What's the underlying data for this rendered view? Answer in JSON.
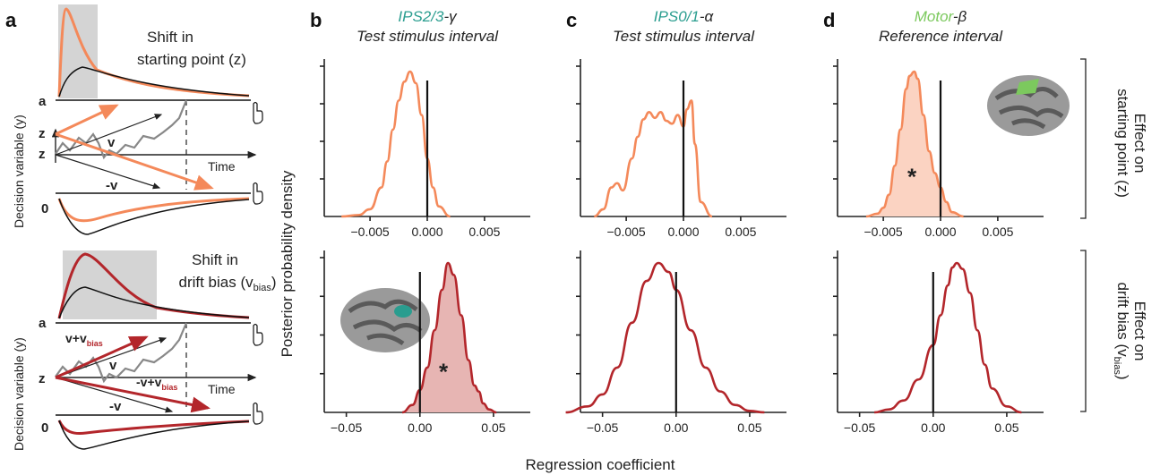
{
  "colors": {
    "orange": "#f4895a",
    "orange_fill": "#fbd3c2",
    "red": "#b3262b",
    "red_fill": "#e7b5b3",
    "gray": "#7a7a7a",
    "teal": "#2a9d8f",
    "green": "#7cc95e"
  },
  "panel_a": {
    "letter": "a",
    "top": {
      "label_line1": "Shift in",
      "label_line2": "starting point (z)",
      "y_axis_label": "Decision variable (y)",
      "label_a": "a",
      "label_z_shift": "z",
      "label_z": "z",
      "label_0": "0",
      "drift_v": "v",
      "drift_minus_v": "-v",
      "time_label": "Time"
    },
    "bottom": {
      "label_line1": "Shift in",
      "label_line2_prefix": "drift bias (v",
      "label_line2_sub": "bias",
      "label_line2_suffix": ")",
      "y_axis_label": "Decision variable (y)",
      "label_a": "a",
      "label_z": "z",
      "label_0": "0",
      "drift_v_plus_prefix": "v+v",
      "drift_v_plus_sub": "bias",
      "drift_v": "v",
      "drift_minus_v_plus_prefix": "-v+v",
      "drift_minus_v_plus_sub": "bias",
      "drift_minus_v": "-v",
      "time_label": "Time"
    }
  },
  "ylabel": "Posterior probability density",
  "xlabel": "Regression coefficient",
  "right_labels": {
    "top": {
      "line1": "Effect on",
      "line2": "starting point (z)"
    },
    "bottom": {
      "line1": "Effect on",
      "line2_prefix": "drift bias (v",
      "line2_sub": "bias",
      "line2_suffix": ")"
    }
  },
  "chart_data": [
    {
      "id": "b-top",
      "type": "area",
      "panel_letter": "b",
      "title_colored": "IPS2/3",
      "title_rest": "-γ",
      "subtitle": "Test stimulus interval",
      "xlim": [
        -0.009,
        0.009
      ],
      "xticks": [
        -0.005,
        0.0,
        0.005
      ],
      "xtick_labels": [
        "−0.005",
        "0.000",
        "0.005"
      ],
      "x": [
        -0.0075,
        -0.006,
        -0.005,
        -0.004,
        -0.0035,
        -0.003,
        -0.0025,
        -0.002,
        -0.0015,
        -0.001,
        -0.0005,
        0.0,
        0.0005,
        0.001,
        0.002
      ],
      "y": [
        0.0,
        0.01,
        0.05,
        0.2,
        0.38,
        0.6,
        0.8,
        0.93,
        1.0,
        0.92,
        0.7,
        0.4,
        0.2,
        0.07,
        0.0
      ],
      "filled": false,
      "significant": false
    },
    {
      "id": "c-top",
      "type": "area",
      "panel_letter": "c",
      "title_colored": "IPS0/1",
      "title_rest": "-α",
      "subtitle": "Test stimulus interval",
      "xlim": [
        -0.009,
        0.009
      ],
      "xticks": [
        -0.005,
        0.0,
        0.005
      ],
      "xtick_labels": [
        "−0.005",
        "0.000",
        "0.005"
      ],
      "x": [
        -0.0078,
        -0.007,
        -0.0063,
        -0.0058,
        -0.0053,
        -0.0045,
        -0.004,
        -0.0035,
        -0.003,
        -0.0025,
        -0.002,
        -0.0015,
        -0.001,
        -0.0005,
        0.0,
        0.0003,
        0.0007,
        0.001,
        0.0015,
        0.0025
      ],
      "y": [
        0.0,
        0.05,
        0.2,
        0.23,
        0.18,
        0.4,
        0.55,
        0.67,
        0.72,
        0.68,
        0.72,
        0.66,
        0.64,
        0.7,
        0.62,
        0.74,
        0.8,
        0.5,
        0.1,
        0.0
      ],
      "filled": false,
      "significant": false
    },
    {
      "id": "d-top",
      "type": "area",
      "panel_letter": "d",
      "title_colored": "Motor",
      "title_rest": "-β",
      "subtitle": "Reference interval",
      "xlim": [
        -0.009,
        0.009
      ],
      "xticks": [
        -0.005,
        0.0,
        0.005
      ],
      "xtick_labels": [
        "−0.005",
        "0.000",
        "0.005"
      ],
      "x": [
        -0.0065,
        -0.0055,
        -0.005,
        -0.0045,
        -0.004,
        -0.0035,
        -0.003,
        -0.0027,
        -0.0023,
        -0.002,
        -0.0015,
        -0.001,
        -0.0005,
        0.0,
        0.0005,
        0.001,
        0.002
      ],
      "y": [
        0.0,
        0.02,
        0.06,
        0.15,
        0.35,
        0.6,
        0.88,
        0.97,
        1.0,
        0.95,
        0.7,
        0.45,
        0.3,
        0.2,
        0.1,
        0.03,
        0.0
      ],
      "filled": true,
      "significant": true,
      "star": "*",
      "star_x": -0.0025,
      "star_y": 0.22
    },
    {
      "id": "b-bottom",
      "type": "area",
      "xlim": [
        -0.065,
        0.075
      ],
      "xticks": [
        -0.05,
        0.0,
        0.05
      ],
      "xtick_labels": [
        "−0.05",
        "0.00",
        "0.05"
      ],
      "x": [
        -0.012,
        -0.005,
        0.0,
        0.005,
        0.01,
        0.015,
        0.019,
        0.023,
        0.028,
        0.033,
        0.037,
        0.04,
        0.043,
        0.047,
        0.052
      ],
      "y": [
        0.0,
        0.05,
        0.15,
        0.3,
        0.55,
        0.82,
        1.0,
        0.92,
        0.65,
        0.35,
        0.18,
        0.14,
        0.06,
        0.02,
        0.0
      ],
      "filled": true,
      "significant": true,
      "star": "*",
      "star_x": 0.016,
      "star_y": 0.22
    },
    {
      "id": "c-bottom",
      "type": "area",
      "xlim": [
        -0.065,
        0.075
      ],
      "xticks": [
        -0.05,
        0.0,
        0.05
      ],
      "xtick_labels": [
        "−0.05",
        "0.00",
        "0.05"
      ],
      "x": [
        -0.075,
        -0.06,
        -0.05,
        -0.04,
        -0.03,
        -0.02,
        -0.012,
        -0.005,
        0.0,
        0.01,
        0.02,
        0.03,
        0.04,
        0.05,
        0.06
      ],
      "y": [
        0.0,
        0.04,
        0.12,
        0.3,
        0.6,
        0.88,
        1.0,
        0.94,
        0.82,
        0.55,
        0.3,
        0.14,
        0.05,
        0.01,
        0.0
      ],
      "filled": false,
      "significant": false
    },
    {
      "id": "d-bottom",
      "type": "area",
      "xlim": [
        -0.065,
        0.075
      ],
      "xticks": [
        -0.05,
        0.0,
        0.05
      ],
      "xtick_labels": [
        "−0.05",
        "0.00",
        "0.05"
      ],
      "x": [
        -0.04,
        -0.03,
        -0.02,
        -0.01,
        0.0,
        0.005,
        0.01,
        0.013,
        0.016,
        0.02,
        0.025,
        0.03,
        0.035,
        0.04,
        0.05,
        0.06
      ],
      "y": [
        0.0,
        0.02,
        0.08,
        0.22,
        0.45,
        0.65,
        0.85,
        0.97,
        1.0,
        0.96,
        0.8,
        0.55,
        0.32,
        0.16,
        0.04,
        0.0
      ],
      "filled": false,
      "significant": false
    }
  ]
}
